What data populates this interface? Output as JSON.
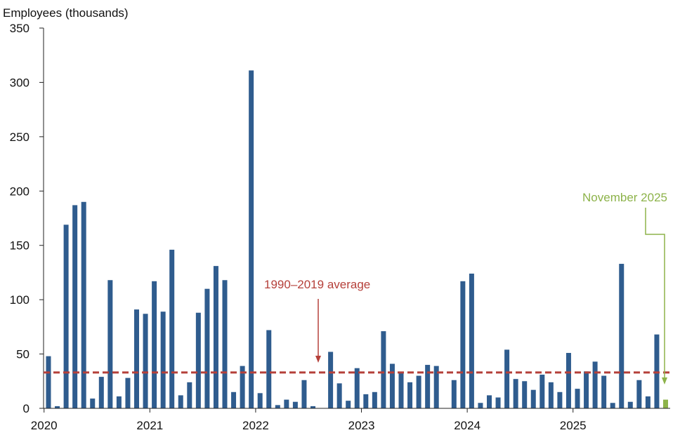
{
  "colors": {
    "bar": "#2F5C8E",
    "highlight_bar": "#8DB34A",
    "average_line": "#B5403A",
    "axis": "#222222"
  },
  "chart_data": {
    "type": "bar",
    "ylabel": "Employees (thousands)",
    "ylim": [
      0,
      350
    ],
    "yticks": [
      0,
      50,
      100,
      150,
      200,
      250,
      300,
      350
    ],
    "xticks": [
      "2020",
      "2021",
      "2022",
      "2023",
      "2024",
      "2025"
    ],
    "series": [
      {
        "name": "Monthly value",
        "start": "2020-01",
        "values": [
          48,
          2,
          169,
          187,
          190,
          9,
          29,
          118,
          11,
          28,
          91,
          87,
          117,
          89,
          146,
          12,
          24,
          88,
          110,
          131,
          118,
          15,
          39,
          311,
          14,
          72,
          3,
          8,
          6,
          26,
          2,
          0,
          52,
          23,
          7,
          37,
          13,
          15,
          71,
          41,
          33,
          24,
          30,
          40,
          39,
          0,
          26,
          117,
          124,
          5,
          12,
          10,
          54,
          27,
          25,
          17,
          31,
          24,
          15,
          51,
          18,
          34,
          43,
          30,
          5,
          133,
          6,
          26,
          11,
          68,
          8
        ]
      }
    ],
    "highlight": {
      "label": "November 2025",
      "index": 70,
      "value": 8
    },
    "average": {
      "label": "1990–2019 average",
      "value": 33
    }
  }
}
